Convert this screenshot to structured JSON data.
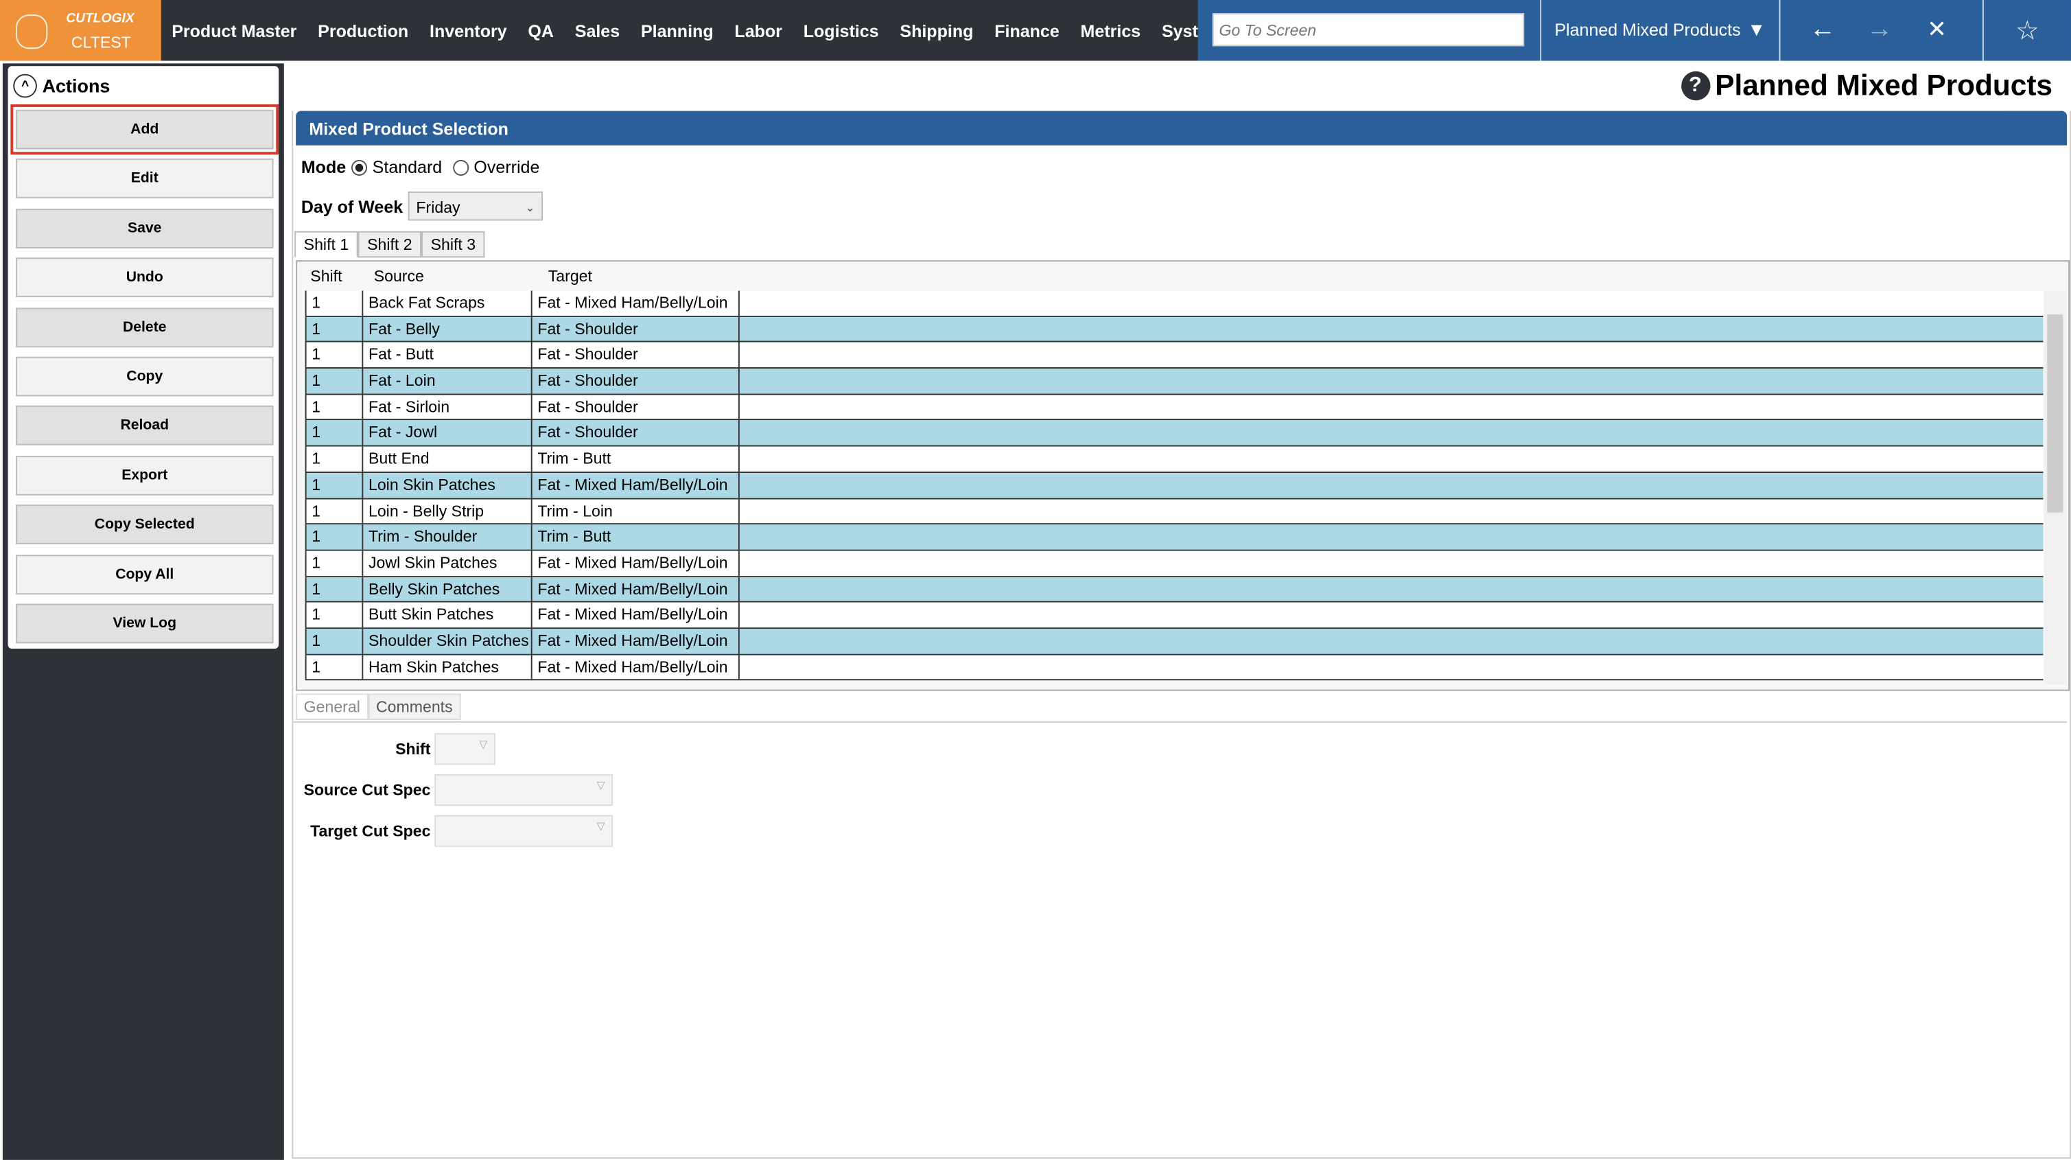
{
  "app": {
    "brand": "CUTLOGIX",
    "env": "CLTEST"
  },
  "nav": [
    "Product Master",
    "Production",
    "Inventory",
    "QA",
    "Sales",
    "Planning",
    "Labor",
    "Logistics",
    "Shipping",
    "Finance",
    "Metrics",
    "System"
  ],
  "goto": {
    "placeholder": "Go To Screen"
  },
  "current_screen": "Planned Mixed Products",
  "icons": {
    "back": "arrow-left-icon",
    "forward": "arrow-right-icon",
    "close": "close-icon",
    "favorite": "star-icon"
  },
  "actions": {
    "title": "Actions",
    "buttons": [
      "Add",
      "Edit",
      "Save",
      "Undo",
      "Delete",
      "Copy",
      "Reload",
      "Export",
      "Copy Selected",
      "Copy All",
      "View Log"
    ],
    "selected": "Add"
  },
  "page_title": "Planned Mixed Products",
  "panel": {
    "title": "Mixed Product Selection",
    "mode_label": "Mode",
    "mode_options": [
      "Standard",
      "Override"
    ],
    "mode_selected": "Standard",
    "dow_label": "Day of Week",
    "dow_value": "Friday",
    "tabs": [
      "Shift 1",
      "Shift 2",
      "Shift 3"
    ],
    "active_tab": "Shift 1",
    "columns": [
      "Shift",
      "Source",
      "Target"
    ],
    "rows": [
      [
        "1",
        "Back Fat Scraps",
        "Fat - Mixed Ham/Belly/Loin"
      ],
      [
        "1",
        "Fat - Belly",
        "Fat - Shoulder"
      ],
      [
        "1",
        "Fat - Butt",
        "Fat - Shoulder"
      ],
      [
        "1",
        "Fat - Loin",
        "Fat - Shoulder"
      ],
      [
        "1",
        "Fat - Sirloin",
        "Fat - Shoulder"
      ],
      [
        "1",
        "Fat - Jowl",
        "Fat - Shoulder"
      ],
      [
        "1",
        "Butt End",
        "Trim - Butt"
      ],
      [
        "1",
        "Loin Skin Patches",
        "Fat - Mixed Ham/Belly/Loin"
      ],
      [
        "1",
        "Loin - Belly Strip",
        "Trim - Loin"
      ],
      [
        "1",
        "Trim - Shoulder",
        "Trim - Butt"
      ],
      [
        "1",
        "Jowl Skin Patches",
        "Fat - Mixed Ham/Belly/Loin"
      ],
      [
        "1",
        "Belly Skin Patches",
        "Fat - Mixed Ham/Belly/Loin"
      ],
      [
        "1",
        "Butt Skin Patches",
        "Fat - Mixed Ham/Belly/Loin"
      ],
      [
        "1",
        "Shoulder Skin Patches",
        "Fat - Mixed Ham/Belly/Loin"
      ],
      [
        "1",
        "Ham Skin Patches",
        "Fat - Mixed Ham/Belly/Loin"
      ]
    ],
    "detail_tabs": [
      "General",
      "Comments"
    ],
    "fields": {
      "shift": "Shift",
      "source": "Source Cut Spec",
      "target": "Target Cut Spec"
    }
  },
  "colors": {
    "accent": "#2a5f9a",
    "brand": "#f0923a",
    "row_alt": "#add8e6",
    "selected_outline": "#d43a2a"
  }
}
